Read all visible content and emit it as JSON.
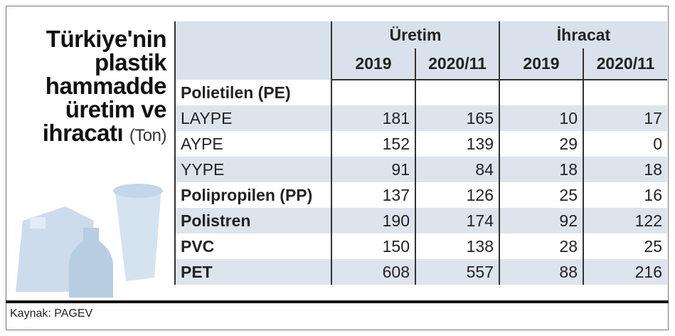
{
  "title_lines": [
    "Türkiye'nin",
    "plastik",
    "hammadde",
    "üretim ve",
    "ihracatı"
  ],
  "unit": "(Ton)",
  "table": {
    "groups": [
      "Üretim",
      "İhracat"
    ],
    "years": [
      "2019",
      "2020/11",
      "2019",
      "2020/11"
    ],
    "rows": [
      {
        "name": "Polietilen (PE)",
        "bold": true
      },
      {
        "name": "LAYPE",
        "bold": false,
        "values": [
          181,
          165,
          10,
          17
        ]
      },
      {
        "name": "AYPE",
        "bold": false,
        "values": [
          152,
          139,
          29,
          0
        ]
      },
      {
        "name": "YYPE",
        "bold": false,
        "values": [
          91,
          84,
          18,
          18
        ]
      },
      {
        "name": "Polipropilen (PP)",
        "bold": true,
        "values": [
          137,
          126,
          25,
          16
        ]
      },
      {
        "name": "Polistren",
        "bold": true,
        "values": [
          190,
          174,
          92,
          122
        ]
      },
      {
        "name": "PVC",
        "bold": true,
        "values": [
          150,
          138,
          28,
          25
        ]
      },
      {
        "name": "PET",
        "bold": true,
        "values": [
          608,
          557,
          88,
          216
        ]
      }
    ]
  },
  "source": "Kaynak: PAGEV"
}
